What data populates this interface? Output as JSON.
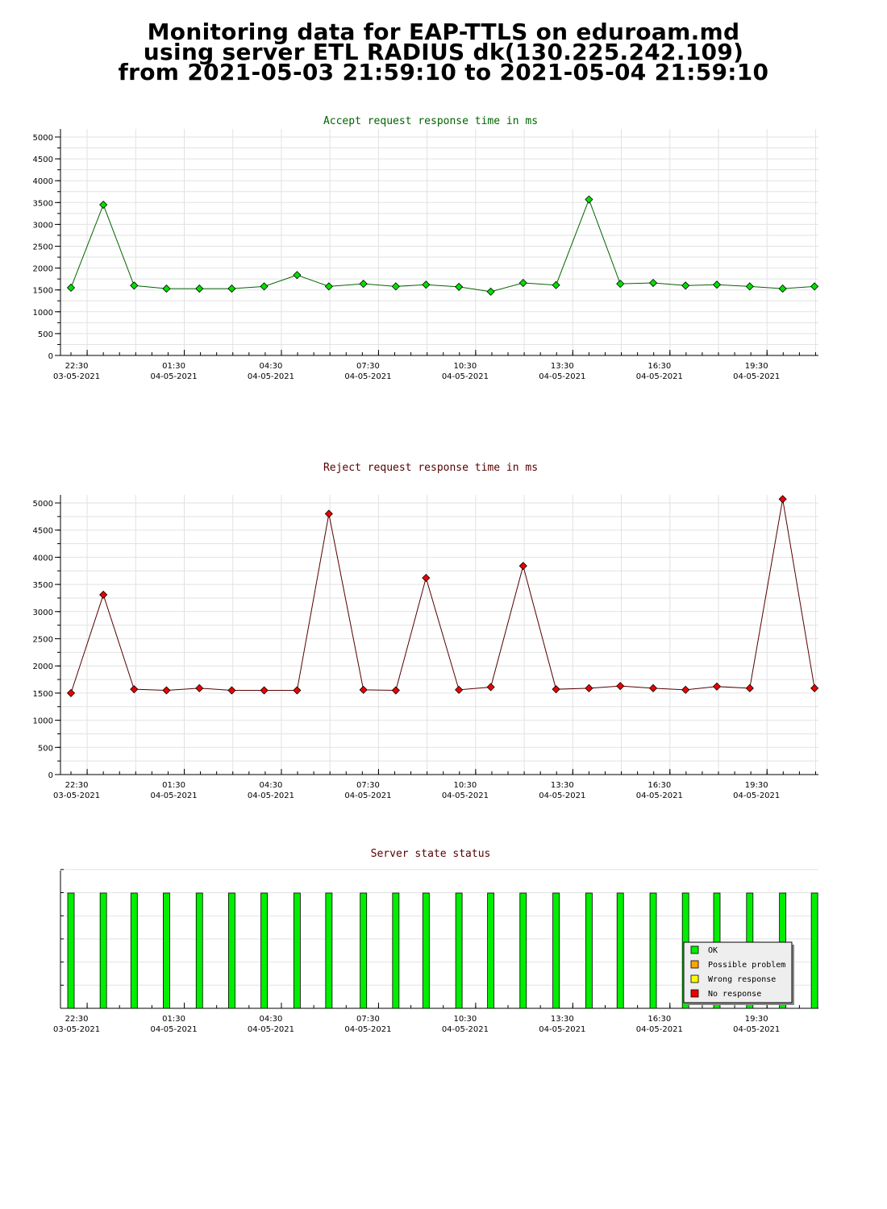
{
  "header": {
    "line1": "Monitoring data for EAP-TTLS on eduroam.md",
    "line2": "using server ETL RADIUS dk(130.225.242.109)",
    "line3": "from 2021-05-03 21:59:10 to 2021-05-04 21:59:10"
  },
  "chart_data": [
    {
      "type": "line",
      "title": "Accept request response time in ms",
      "title_color": "#006400",
      "line_color": "#006400",
      "marker_color": "#00e000",
      "ylim": [
        0,
        5000
      ],
      "yticks": [
        "0",
        "500",
        "1000",
        "1500",
        "2000",
        "2500",
        "3000",
        "3500",
        "4000",
        "4500",
        "5000"
      ],
      "xtick_labels": [
        {
          "time": "22:30",
          "date": "03-05-2021"
        },
        {
          "time": "01:30",
          "date": "04-05-2021"
        },
        {
          "time": "04:30",
          "date": "04-05-2021"
        },
        {
          "time": "07:30",
          "date": "04-05-2021"
        },
        {
          "time": "10:30",
          "date": "04-05-2021"
        },
        {
          "time": "13:30",
          "date": "04-05-2021"
        },
        {
          "time": "16:30",
          "date": "04-05-2021"
        },
        {
          "time": "19:30",
          "date": "04-05-2021"
        }
      ],
      "x": [
        "22:00",
        "23:00",
        "23:57",
        "00:57",
        "01:58",
        "02:58",
        "03:58",
        "04:59",
        "05:58",
        "07:02",
        "08:02",
        "08:58",
        "09:59",
        "10:58",
        "11:58",
        "12:59",
        "14:00",
        "14:58",
        "15:59",
        "16:59",
        "17:57",
        "18:58",
        "19:59",
        "20:58"
      ],
      "values": [
        1550,
        3450,
        1600,
        1530,
        1530,
        1530,
        1580,
        1840,
        1580,
        1640,
        1580,
        1620,
        1570,
        1460,
        1660,
        1610,
        3570,
        1640,
        1660,
        1600,
        1620,
        1580,
        1530,
        1580
      ]
    },
    {
      "type": "line",
      "title": "Reject request response time in ms",
      "title_color": "#550000",
      "line_color": "#550000",
      "marker_color": "#ee0000",
      "ylim": [
        0,
        5000
      ],
      "yticks": [
        "0",
        "500",
        "1000",
        "1500",
        "2000",
        "2500",
        "3000",
        "3500",
        "4000",
        "4500",
        "5000"
      ],
      "xtick_labels": [
        {
          "time": "22:30",
          "date": "03-05-2021"
        },
        {
          "time": "01:30",
          "date": "04-05-2021"
        },
        {
          "time": "04:30",
          "date": "04-05-2021"
        },
        {
          "time": "07:30",
          "date": "04-05-2021"
        },
        {
          "time": "10:30",
          "date": "04-05-2021"
        },
        {
          "time": "13:30",
          "date": "04-05-2021"
        },
        {
          "time": "16:30",
          "date": "04-05-2021"
        },
        {
          "time": "19:30",
          "date": "04-05-2021"
        }
      ],
      "x": [
        "22:00",
        "23:00",
        "23:57",
        "00:57",
        "01:58",
        "02:58",
        "03:58",
        "04:59",
        "05:58",
        "07:02",
        "08:02",
        "08:58",
        "09:59",
        "10:58",
        "11:58",
        "12:59",
        "14:00",
        "14:58",
        "15:59",
        "16:59",
        "17:57",
        "18:58",
        "19:59",
        "20:58"
      ],
      "values": [
        1500,
        3310,
        1570,
        1550,
        1590,
        1550,
        1550,
        1550,
        4800,
        1560,
        1550,
        3620,
        1560,
        1610,
        3840,
        1570,
        1590,
        1630,
        1590,
        1560,
        1620,
        1590,
        5070,
        1590
      ]
    },
    {
      "type": "bar",
      "title": "Server state status",
      "title_color": "#550000",
      "xtick_labels": [
        {
          "time": "22:30",
          "date": "03-05-2021"
        },
        {
          "time": "01:30",
          "date": "04-05-2021"
        },
        {
          "time": "04:30",
          "date": "04-05-2021"
        },
        {
          "time": "07:30",
          "date": "04-05-2021"
        },
        {
          "time": "10:30",
          "date": "04-05-2021"
        },
        {
          "time": "13:30",
          "date": "04-05-2021"
        },
        {
          "time": "16:30",
          "date": "04-05-2021"
        },
        {
          "time": "19:30",
          "date": "04-05-2021"
        }
      ],
      "x": [
        "22:00",
        "23:00",
        "23:57",
        "00:57",
        "01:58",
        "02:58",
        "03:58",
        "04:59",
        "05:58",
        "07:02",
        "08:02",
        "08:58",
        "09:59",
        "10:58",
        "11:58",
        "12:59",
        "14:00",
        "14:58",
        "15:59",
        "16:59",
        "17:57",
        "18:58",
        "19:59",
        "20:58"
      ],
      "states": [
        "OK",
        "OK",
        "OK",
        "OK",
        "OK",
        "OK",
        "OK",
        "OK",
        "OK",
        "OK",
        "OK",
        "OK",
        "OK",
        "OK",
        "OK",
        "OK",
        "OK",
        "OK",
        "OK",
        "OK",
        "OK",
        "OK",
        "OK",
        "OK"
      ],
      "legend_position": "bottom-right",
      "legend": [
        {
          "label": "OK",
          "color": "#00ee00"
        },
        {
          "label": "Possible problem",
          "color": "#ffa500"
        },
        {
          "label": "Wrong response",
          "color": "#ffff00"
        },
        {
          "label": "No response",
          "color": "#ee0000"
        }
      ]
    }
  ]
}
